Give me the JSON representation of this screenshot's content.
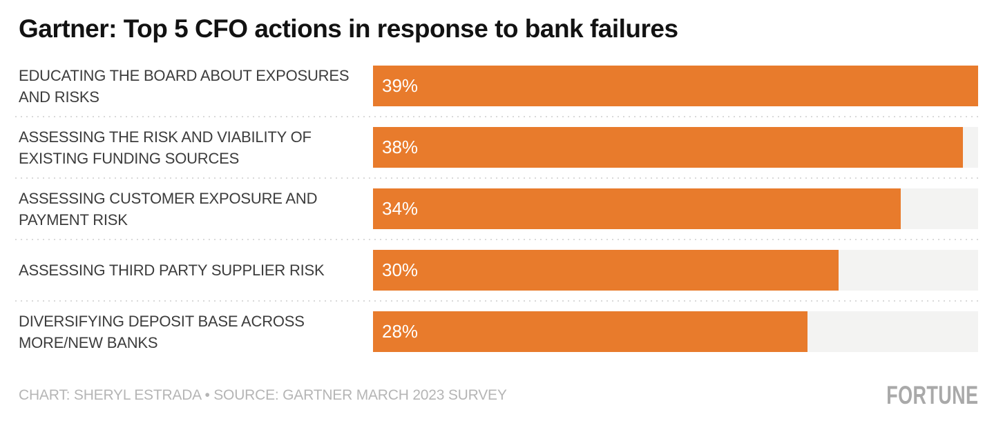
{
  "title": "Gartner: Top 5 CFO actions in response to bank failures",
  "chart_data": {
    "type": "bar",
    "orientation": "horizontal",
    "title": "Gartner: Top 5 CFO actions in response to bank failures",
    "categories": [
      "EDUCATING THE BOARD ABOUT EXPOSURES AND RISKS",
      "ASSESSING THE RISK AND VIABILITY OF EXISTING FUNDING SOURCES",
      "ASSESSING CUSTOMER EXPOSURE AND PAYMENT RISK",
      "ASSESSING THIRD PARTY SUPPLIER RISK",
      "DIVERSIFYING DEPOSIT BASE ACROSS MORE/NEW BANKS"
    ],
    "values": [
      39,
      38,
      34,
      30,
      28
    ],
    "value_labels": [
      "39%",
      "38%",
      "34%",
      "30%",
      "28%"
    ],
    "xlabel": "",
    "ylabel": "",
    "xlim": [
      0,
      39
    ],
    "grid": false,
    "legend": false,
    "bar_color": "#e87b2c",
    "track_color": "#f3f3f2"
  },
  "footer": {
    "credit": "CHART: SHERYL ESTRADA • SOURCE: GARTNER MARCH 2023 SURVEY",
    "logo": "FORTUNE"
  },
  "colors": {
    "title_text": "#121212",
    "label_text": "#3c3c3c",
    "bar": "#e87b2c",
    "bar_track": "#f3f3f2",
    "value_text": "#ffffff",
    "separator": "#d9d9d9",
    "credit_text": "#b5b5b5",
    "logo_text": "#a9a9a9",
    "background": "#ffffff"
  }
}
